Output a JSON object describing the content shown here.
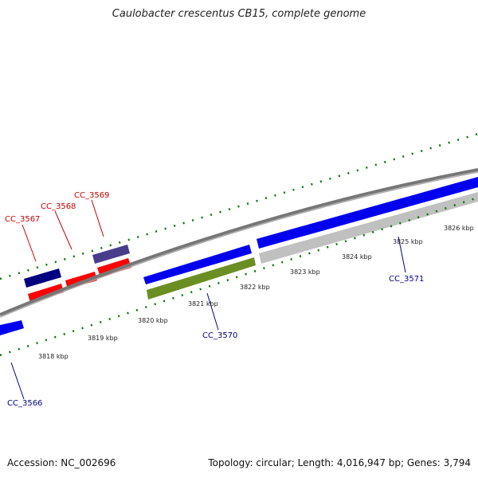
{
  "title": "Caulobacter crescentus CB15, complete genome",
  "footer": {
    "accession": "Accession: NC_002696",
    "stats": "Topology: circular; Length: 4,016,947 bp; Genes: 3,794"
  },
  "colors": {
    "forward_cds": "#0000ee",
    "reverse_cds": "#ff0000",
    "navy_gene": "#000080",
    "slate_gene": "#483d8b",
    "olive_gene": "#6b8e23",
    "silver_gene": "#c0c0c0",
    "backbone": "#808080",
    "tick": "#007700",
    "forward_label": "#00008b",
    "reverse_label": "#cc0000"
  },
  "ticks": [
    "3818 kbp",
    "3819 kbp",
    "3820 kbp",
    "3821 kbp",
    "3822 kbp",
    "3823 kbp",
    "3824 kbp",
    "3825 kbp",
    "3826 kbp"
  ],
  "genes": [
    {
      "label": "CC_3566",
      "strand": "forward"
    },
    {
      "label": "CC_3567",
      "strand": "reverse"
    },
    {
      "label": "CC_3568",
      "strand": "reverse"
    },
    {
      "label": "CC_3569",
      "strand": "reverse"
    },
    {
      "label": "CC_3570",
      "strand": "forward"
    },
    {
      "label": "CC_3571",
      "strand": "forward"
    }
  ]
}
